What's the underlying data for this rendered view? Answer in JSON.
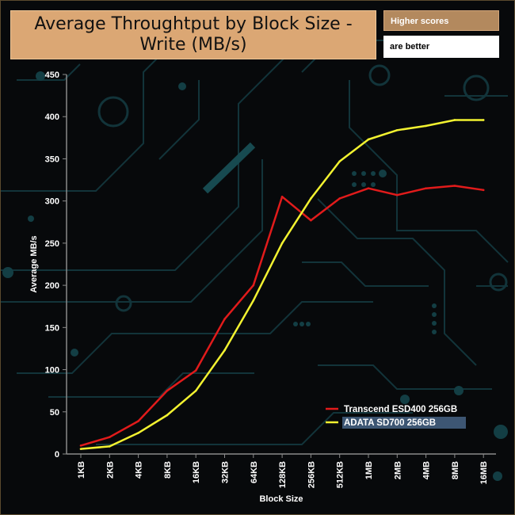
{
  "page": {
    "title": "Average Throughtput by Block Size - Write (MB/s)",
    "note_line1": "Higher scores",
    "note_line2": "are better"
  },
  "colors": {
    "background": "#07090b",
    "circuit": "#12343a",
    "title_box": "#dba774",
    "axis_text": "#ffffff",
    "transcend": "#e11b1b",
    "adata": "#f2f230",
    "legend_highlight": "#3d5673"
  },
  "chart_data": {
    "type": "line",
    "title": "Average Throughtput by Block Size - Write (MB/s)",
    "xlabel": "Block Size",
    "ylabel": "Average MB/s",
    "categories": [
      "1KB",
      "2KB",
      "4KB",
      "8KB",
      "16KB",
      "32KB",
      "64KB",
      "128KB",
      "256KB",
      "512KB",
      "1MB",
      "2MB",
      "4MB",
      "8MB",
      "16MB"
    ],
    "ylim": [
      0,
      450
    ],
    "yticks": [
      0,
      50,
      100,
      150,
      200,
      250,
      300,
      350,
      400,
      450
    ],
    "grid": false,
    "legend_position": "bottom-right",
    "series": [
      {
        "name": "Transcend ESD400 256GB",
        "color": "#e11b1b",
        "values": [
          10,
          20,
          39,
          75,
          99,
          160,
          200,
          305,
          277,
          303,
          315,
          307,
          315,
          318,
          313
        ]
      },
      {
        "name": "ADATA SD700 256GB",
        "color": "#f2f230",
        "values": [
          6,
          9,
          25,
          46,
          75,
          123,
          182,
          250,
          303,
          347,
          373,
          384,
          389,
          396,
          396
        ]
      }
    ]
  }
}
